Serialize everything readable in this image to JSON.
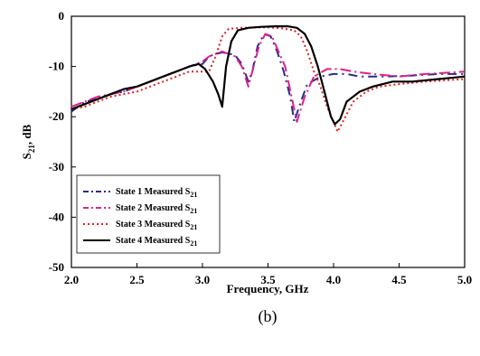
{
  "chart_data": {
    "type": "line",
    "title": "",
    "xlabel": "Frequency, GHz",
    "ylabel_main": "S",
    "ylabel_sub": "21",
    "ylabel_rest": ", dB",
    "xlim": [
      2.0,
      5.0
    ],
    "ylim": [
      -50,
      0
    ],
    "xticks": [
      "2.0",
      "2.5",
      "3.0",
      "3.5",
      "4.0",
      "4.5",
      "5.0"
    ],
    "yticks": [
      "0",
      "-10",
      "-20",
      "-30",
      "-40",
      "-50"
    ],
    "grid": false,
    "legend_position": "bottom-left",
    "series": [
      {
        "name": "State 1 Measured S",
        "name_sub": "21",
        "color": "#2b2b8c",
        "dash": "10,5,2,5",
        "points": [
          [
            2.0,
            -19
          ],
          [
            2.1,
            -17
          ],
          [
            2.2,
            -16.5
          ],
          [
            2.3,
            -15.5
          ],
          [
            2.4,
            -15
          ],
          [
            2.5,
            -14
          ],
          [
            2.6,
            -13
          ],
          [
            2.7,
            -12
          ],
          [
            2.8,
            -11
          ],
          [
            2.9,
            -10
          ],
          [
            3.0,
            -9.5
          ],
          [
            3.05,
            -8
          ],
          [
            3.1,
            -7.5
          ],
          [
            3.15,
            -7.2
          ],
          [
            3.2,
            -7.4
          ],
          [
            3.25,
            -7.8
          ],
          [
            3.3,
            -9.5
          ],
          [
            3.35,
            -13
          ],
          [
            3.38,
            -11
          ],
          [
            3.42,
            -6
          ],
          [
            3.47,
            -3.5
          ],
          [
            3.52,
            -4
          ],
          [
            3.57,
            -7
          ],
          [
            3.62,
            -11
          ],
          [
            3.67,
            -16
          ],
          [
            3.7,
            -21
          ],
          [
            3.75,
            -17
          ],
          [
            3.8,
            -13.5
          ],
          [
            3.9,
            -12
          ],
          [
            4.0,
            -11.5
          ],
          [
            4.1,
            -11.5
          ],
          [
            4.2,
            -12
          ],
          [
            4.3,
            -12
          ],
          [
            4.4,
            -12
          ],
          [
            4.6,
            -11.8
          ],
          [
            4.8,
            -11.5
          ],
          [
            5.0,
            -11.5
          ]
        ]
      },
      {
        "name": "State 2 Measured S",
        "name_sub": "21",
        "color": "#e0208a",
        "dash": "12,4,2,4",
        "points": [
          [
            2.0,
            -18
          ],
          [
            2.1,
            -17
          ],
          [
            2.2,
            -16
          ],
          [
            2.3,
            -15.5
          ],
          [
            2.4,
            -15
          ],
          [
            2.5,
            -14
          ],
          [
            2.6,
            -13
          ],
          [
            2.7,
            -12
          ],
          [
            2.8,
            -11
          ],
          [
            2.9,
            -10
          ],
          [
            3.0,
            -9
          ],
          [
            3.05,
            -8
          ],
          [
            3.1,
            -7.5
          ],
          [
            3.15,
            -7
          ],
          [
            3.2,
            -7.5
          ],
          [
            3.25,
            -8
          ],
          [
            3.3,
            -10
          ],
          [
            3.35,
            -14
          ],
          [
            3.39,
            -10
          ],
          [
            3.43,
            -6
          ],
          [
            3.48,
            -3.5
          ],
          [
            3.53,
            -4
          ],
          [
            3.58,
            -7
          ],
          [
            3.63,
            -10
          ],
          [
            3.68,
            -16
          ],
          [
            3.72,
            -21
          ],
          [
            3.78,
            -16
          ],
          [
            3.85,
            -12
          ],
          [
            3.95,
            -10.5
          ],
          [
            4.05,
            -10.5
          ],
          [
            4.15,
            -11
          ],
          [
            4.3,
            -11.5
          ],
          [
            4.5,
            -12
          ],
          [
            4.7,
            -11.5
          ],
          [
            5.0,
            -11
          ]
        ]
      },
      {
        "name": "State 3 Measured S",
        "name_sub": "21",
        "color": "#e02020",
        "dash": "2,3",
        "points": [
          [
            2.0,
            -18.5
          ],
          [
            2.1,
            -18
          ],
          [
            2.2,
            -17
          ],
          [
            2.3,
            -16
          ],
          [
            2.4,
            -15.5
          ],
          [
            2.5,
            -15
          ],
          [
            2.6,
            -14
          ],
          [
            2.7,
            -13
          ],
          [
            2.8,
            -12
          ],
          [
            2.9,
            -11
          ],
          [
            3.0,
            -11
          ],
          [
            3.05,
            -11
          ],
          [
            3.1,
            -8
          ],
          [
            3.15,
            -4
          ],
          [
            3.2,
            -2.5
          ],
          [
            3.3,
            -2.3
          ],
          [
            3.4,
            -2.2
          ],
          [
            3.5,
            -2.2
          ],
          [
            3.6,
            -2.4
          ],
          [
            3.7,
            -2.8
          ],
          [
            3.75,
            -4
          ],
          [
            3.8,
            -7
          ],
          [
            3.85,
            -11
          ],
          [
            3.9,
            -14
          ],
          [
            3.95,
            -18
          ],
          [
            4.0,
            -21
          ],
          [
            4.03,
            -23
          ],
          [
            4.07,
            -21
          ],
          [
            4.15,
            -17
          ],
          [
            4.25,
            -15
          ],
          [
            4.35,
            -14
          ],
          [
            4.5,
            -13.5
          ],
          [
            4.7,
            -13
          ],
          [
            5.0,
            -12.5
          ]
        ]
      },
      {
        "name": "State 4 Measured S",
        "name_sub": "21",
        "color": "#000000",
        "dash": "",
        "points": [
          [
            2.0,
            -18.5
          ],
          [
            2.1,
            -17.5
          ],
          [
            2.2,
            -16.5
          ],
          [
            2.3,
            -15.5
          ],
          [
            2.4,
            -14.5
          ],
          [
            2.5,
            -14
          ],
          [
            2.6,
            -13
          ],
          [
            2.7,
            -12
          ],
          [
            2.8,
            -11
          ],
          [
            2.9,
            -10
          ],
          [
            2.97,
            -9.5
          ],
          [
            3.02,
            -10.5
          ],
          [
            3.08,
            -13
          ],
          [
            3.12,
            -15.5
          ],
          [
            3.15,
            -18
          ],
          [
            3.18,
            -10
          ],
          [
            3.22,
            -5
          ],
          [
            3.27,
            -2.8
          ],
          [
            3.35,
            -2.3
          ],
          [
            3.45,
            -2.1
          ],
          [
            3.55,
            -2
          ],
          [
            3.65,
            -2
          ],
          [
            3.72,
            -2.3
          ],
          [
            3.78,
            -3.5
          ],
          [
            3.83,
            -6
          ],
          [
            3.88,
            -10
          ],
          [
            3.93,
            -15
          ],
          [
            3.98,
            -20
          ],
          [
            4.01,
            -21.5
          ],
          [
            4.05,
            -20.5
          ],
          [
            4.1,
            -17
          ],
          [
            4.2,
            -15
          ],
          [
            4.3,
            -14
          ],
          [
            4.45,
            -13
          ],
          [
            4.6,
            -13
          ],
          [
            4.8,
            -12.5
          ],
          [
            5.0,
            -12
          ]
        ]
      }
    ]
  },
  "caption": "(b)"
}
